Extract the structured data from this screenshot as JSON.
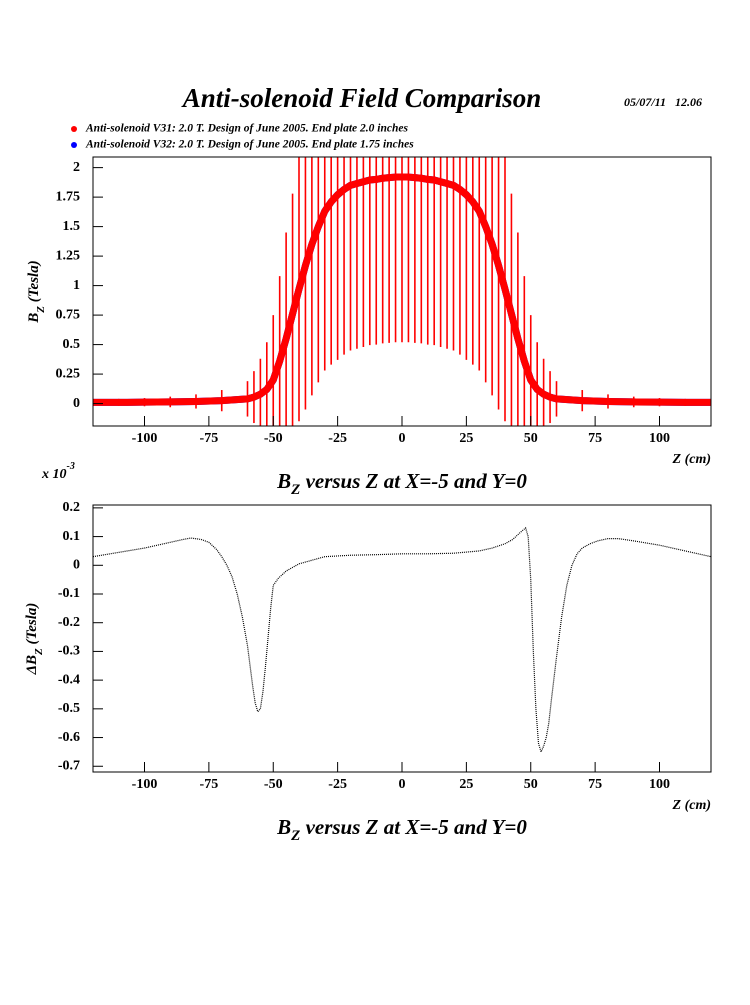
{
  "date": "05/07/11   12.06",
  "chart_data": [
    {
      "type": "line",
      "title": "Anti-solenoid Field Comparison",
      "xlabel": "Z (cm)",
      "ylabel": {
        "main": "B",
        "sub": "Z",
        "rest": " (Tesla)"
      },
      "subtitle": {
        "main": "B",
        "sub": "Z",
        "rest": " versus Z at X=-5 and Y=0"
      },
      "x": [
        -120,
        -110,
        -100,
        -90,
        -80,
        -70,
        -60,
        -57.5,
        -55,
        -52.5,
        -50,
        -47.5,
        -45,
        -42.5,
        -40,
        -37.5,
        -35,
        -32.5,
        -30,
        -27.5,
        -25,
        -22.5,
        -20,
        -17.5,
        -15,
        -12.5,
        -10,
        -7.5,
        -5,
        -2.5,
        0,
        2.5,
        5,
        7.5,
        10,
        12.5,
        15,
        17.5,
        20,
        22.5,
        25,
        27.5,
        30,
        32.5,
        35,
        37.5,
        40,
        42.5,
        45,
        47.5,
        50,
        52.5,
        55,
        57.5,
        60,
        70,
        80,
        90,
        100,
        110,
        120
      ],
      "series": [
        {
          "name": "Anti-solenoid V31: 2.0 T. Design of June 2005. End plate 2.0 inches",
          "color": "#ff0000",
          "values": [
            0.01,
            0.01,
            0.012,
            0.014,
            0.018,
            0.025,
            0.04,
            0.055,
            0.08,
            0.12,
            0.2,
            0.36,
            0.55,
            0.76,
            0.97,
            1.17,
            1.35,
            1.5,
            1.63,
            1.71,
            1.77,
            1.815,
            1.85,
            1.865,
            1.88,
            1.895,
            1.9,
            1.91,
            1.915,
            1.92,
            1.92,
            1.92,
            1.915,
            1.91,
            1.9,
            1.895,
            1.88,
            1.865,
            1.85,
            1.815,
            1.77,
            1.71,
            1.63,
            1.5,
            1.35,
            1.17,
            0.97,
            0.76,
            0.55,
            0.36,
            0.2,
            0.12,
            0.08,
            0.055,
            0.04,
            0.025,
            0.018,
            0.014,
            0.012,
            0.01,
            0.01
          ],
          "errors": [
            0.025,
            0.03,
            0.035,
            0.045,
            0.06,
            0.09,
            0.15,
            0.22,
            0.3,
            0.4,
            0.55,
            0.72,
            0.9,
            1.02,
            1.12,
            1.22,
            1.28,
            1.32,
            1.35,
            1.38,
            1.4,
            1.4,
            1.4,
            1.4,
            1.4,
            1.4,
            1.4,
            1.4,
            1.4,
            1.4,
            1.4,
            1.4,
            1.4,
            1.4,
            1.4,
            1.4,
            1.4,
            1.4,
            1.4,
            1.4,
            1.4,
            1.38,
            1.35,
            1.32,
            1.28,
            1.22,
            1.12,
            1.02,
            0.9,
            0.72,
            0.55,
            0.4,
            0.3,
            0.22,
            0.15,
            0.09,
            0.06,
            0.045,
            0.035,
            0.03,
            0.025
          ]
        },
        {
          "name": "Anti-solenoid V32: 2.0 T. Design of June 2005. End plate 1.75 inches",
          "color": "#0000ff",
          "values": [
            0.01,
            0.01,
            0.012,
            0.014,
            0.018,
            0.025,
            0.04,
            0.055,
            0.08,
            0.12,
            0.2,
            0.36,
            0.55,
            0.76,
            0.97,
            1.17,
            1.35,
            1.5,
            1.63,
            1.71,
            1.77,
            1.815,
            1.85,
            1.865,
            1.88,
            1.895,
            1.9,
            1.91,
            1.915,
            1.92,
            1.92,
            1.92,
            1.915,
            1.91,
            1.9,
            1.895,
            1.88,
            1.865,
            1.85,
            1.815,
            1.77,
            1.71,
            1.63,
            1.5,
            1.35,
            1.17,
            0.97,
            0.76,
            0.55,
            0.36,
            0.2,
            0.12,
            0.08,
            0.055,
            0.04,
            0.025,
            0.018,
            0.014,
            0.012,
            0.01,
            0.01
          ]
        }
      ],
      "xlim": [
        -120,
        120
      ],
      "ylim": [
        -0.19,
        2.09
      ],
      "xticks": [
        -100,
        -75,
        -50,
        -25,
        0,
        25,
        50,
        75,
        100
      ],
      "yticks": [
        0,
        0.25,
        0.5,
        0.75,
        1,
        1.25,
        1.5,
        1.75,
        2
      ]
    },
    {
      "type": "line",
      "xlabel": "Z (cm)",
      "ylabel": {
        "main": "ΔB",
        "sub": "Z",
        "rest": " (Tesla)"
      },
      "subtitle": {
        "main": "B",
        "sub": "Z",
        "rest": " versus Z at X=-5 and Y=0"
      },
      "multiplier": {
        "base": "x 10",
        "exp": "-3"
      },
      "x": [
        -120,
        -110,
        -100,
        -90,
        -85,
        -82,
        -78,
        -75,
        -72,
        -70,
        -68,
        -66,
        -64,
        -62,
        -60,
        -58,
        -57,
        -56,
        -55,
        -54,
        -53,
        -52,
        -51,
        -50,
        -48,
        -45,
        -40,
        -30,
        -20,
        -10,
        0,
        10,
        20,
        30,
        35,
        40,
        43,
        46,
        48,
        49,
        50,
        51,
        52,
        53,
        54,
        55,
        56,
        57,
        58,
        60,
        62,
        64,
        66,
        68,
        70,
        73,
        76,
        80,
        84,
        90,
        100,
        110,
        120
      ],
      "values": [
        0.03,
        0.045,
        0.06,
        0.08,
        0.09,
        0.095,
        0.09,
        0.08,
        0.055,
        0.03,
        0,
        -0.04,
        -0.1,
        -0.18,
        -0.28,
        -0.42,
        -0.48,
        -0.51,
        -0.5,
        -0.44,
        -0.35,
        -0.25,
        -0.15,
        -0.07,
        -0.045,
        -0.02,
        0.005,
        0.03,
        0.035,
        0.037,
        0.04,
        0.04,
        0.042,
        0.05,
        0.06,
        0.075,
        0.09,
        0.115,
        0.13,
        0.1,
        -0.05,
        -0.3,
        -0.5,
        -0.62,
        -0.65,
        -0.63,
        -0.6,
        -0.55,
        -0.47,
        -0.32,
        -0.18,
        -0.07,
        0,
        0.04,
        0.06,
        0.075,
        0.085,
        0.093,
        0.093,
        0.085,
        0.07,
        0.05,
        0.03
      ],
      "color": "#000000",
      "xlim": [
        -120,
        120
      ],
      "ylim": [
        -0.72,
        0.21
      ],
      "xticks": [
        -100,
        -75,
        -50,
        -25,
        0,
        25,
        50,
        75,
        100
      ],
      "yticks": [
        0.2,
        0.1,
        0,
        -0.1,
        -0.2,
        -0.3,
        -0.4,
        -0.5,
        -0.6,
        -0.7
      ]
    }
  ]
}
